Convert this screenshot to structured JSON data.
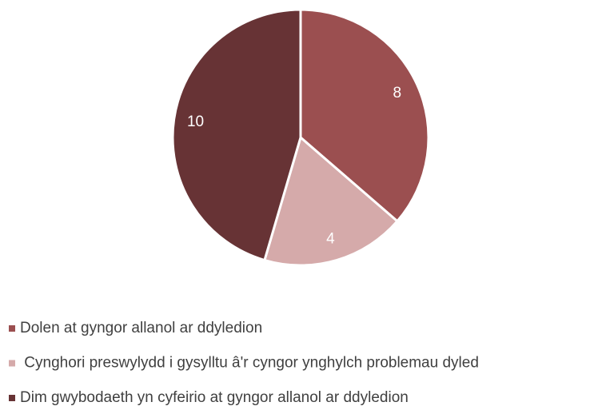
{
  "chart_data": {
    "type": "pie",
    "categories": [
      "Dolen at gyngor allanol ar ddyledion",
      " Cynghori preswylydd i gysylltu â'r cyngor ynghylch problemau dyled",
      "Dim gwybodaeth yn cyfeirio at gyngor allanol ar ddyledion"
    ],
    "values": [
      8,
      4,
      10
    ],
    "colors": [
      "#9b4f50",
      "#d5aaaa",
      "#673335"
    ],
    "legend": "bottom"
  }
}
